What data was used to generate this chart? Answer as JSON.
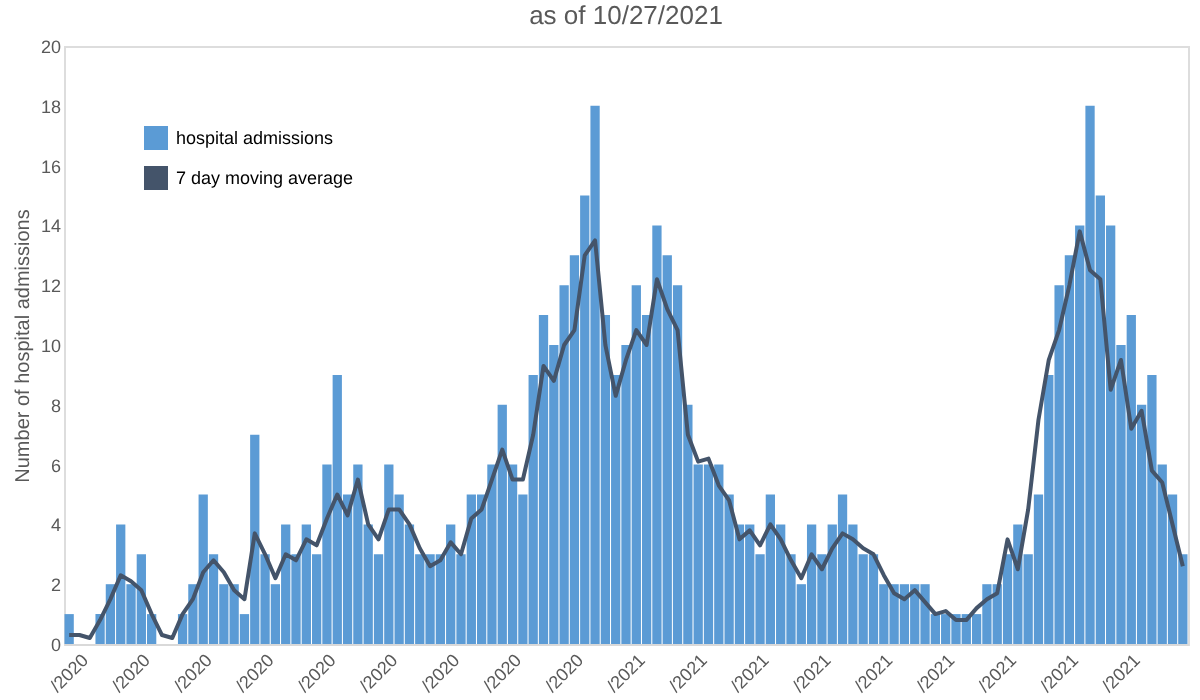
{
  "chart_data": {
    "type": "bar",
    "title": "as of 10/27/2021",
    "ylabel": "Number of hospital admissions",
    "categories": [
      "/2020",
      null,
      null,
      null,
      null,
      null,
      "/2020",
      null,
      null,
      null,
      null,
      null,
      "/2020",
      null,
      null,
      null,
      null,
      null,
      "/2020",
      null,
      null,
      null,
      null,
      null,
      "/2020",
      null,
      null,
      null,
      null,
      null,
      "/2020",
      null,
      null,
      null,
      null,
      null,
      "/2020",
      null,
      null,
      null,
      null,
      null,
      "/2020",
      null,
      null,
      null,
      null,
      null,
      "/2020",
      null,
      null,
      null,
      null,
      null,
      "/2021",
      null,
      null,
      null,
      null,
      null,
      "/2021",
      null,
      null,
      null,
      null,
      null,
      "/2021",
      null,
      null,
      null,
      null,
      null,
      "/2021",
      null,
      null,
      null,
      null,
      null,
      "/2021",
      null,
      null,
      null,
      null,
      null,
      "/2021",
      null,
      null,
      null,
      null,
      null,
      "/2021",
      null,
      null,
      null,
      null,
      null,
      "/2021",
      null,
      null,
      null,
      null,
      null,
      "/2021",
      null,
      null,
      null,
      null,
      null,
      null
    ],
    "series": [
      {
        "name": "hospital admissions",
        "color": "#5b9bd5",
        "values": [
          1,
          0,
          0,
          1,
          2,
          4,
          2,
          3,
          1,
          0,
          0,
          1,
          2,
          5,
          3,
          2,
          2,
          1,
          7,
          3,
          2,
          4,
          3,
          4,
          3,
          6,
          9,
          5,
          6,
          4,
          3,
          6,
          5,
          4,
          3,
          3,
          3,
          4,
          3,
          5,
          5,
          6,
          8,
          6,
          5,
          9,
          11,
          10,
          12,
          13,
          15,
          18,
          11,
          9,
          10,
          12,
          11,
          14,
          13,
          12,
          8,
          6,
          6,
          6,
          5,
          4,
          4,
          3,
          5,
          4,
          3,
          2,
          4,
          3,
          4,
          5,
          4,
          3,
          3,
          2,
          2,
          2,
          2,
          2,
          1,
          1,
          1,
          1,
          1,
          2,
          2,
          3,
          4,
          3,
          5,
          9,
          12,
          13,
          14,
          18,
          15,
          14,
          10,
          11,
          8,
          9,
          6,
          5,
          3
        ]
      },
      {
        "name": "7 day moving average",
        "type": "line",
        "color": "#44546a",
        "values": [
          0.3,
          0.3,
          0.2,
          0.8,
          1.5,
          2.3,
          2.1,
          1.8,
          1.0,
          0.3,
          0.2,
          1.0,
          1.5,
          2.4,
          2.8,
          2.4,
          1.8,
          1.5,
          3.7,
          3.0,
          2.2,
          3.0,
          2.8,
          3.5,
          3.3,
          4.2,
          5.0,
          4.3,
          5.5,
          4.0,
          3.5,
          4.5,
          4.5,
          4.0,
          3.2,
          2.6,
          2.8,
          3.4,
          3.0,
          4.2,
          4.5,
          5.5,
          6.5,
          5.5,
          5.5,
          7.0,
          9.3,
          8.8,
          10.0,
          10.5,
          13.0,
          13.5,
          10.0,
          8.3,
          9.5,
          10.5,
          10.0,
          12.2,
          11.2,
          10.5,
          7.0,
          6.1,
          6.2,
          5.3,
          4.8,
          3.5,
          3.8,
          3.3,
          4.0,
          3.5,
          2.8,
          2.2,
          3.0,
          2.5,
          3.2,
          3.7,
          3.5,
          3.2,
          3.0,
          2.3,
          1.7,
          1.5,
          1.8,
          1.4,
          1.0,
          1.1,
          0.8,
          0.8,
          1.2,
          1.5,
          1.7,
          3.5,
          2.5,
          4.5,
          7.5,
          9.5,
          10.5,
          12.0,
          13.8,
          12.5,
          12.2,
          8.5,
          9.5,
          7.2,
          7.8,
          5.8,
          5.4,
          4.0,
          2.6
        ]
      }
    ],
    "ylim": [
      0,
      20
    ],
    "yticks": [
      0,
      2,
      4,
      6,
      8,
      10,
      12,
      14,
      16,
      18,
      20
    ],
    "grid": false,
    "legend": "top left",
    "marker": "none",
    "line_style": "solid"
  }
}
